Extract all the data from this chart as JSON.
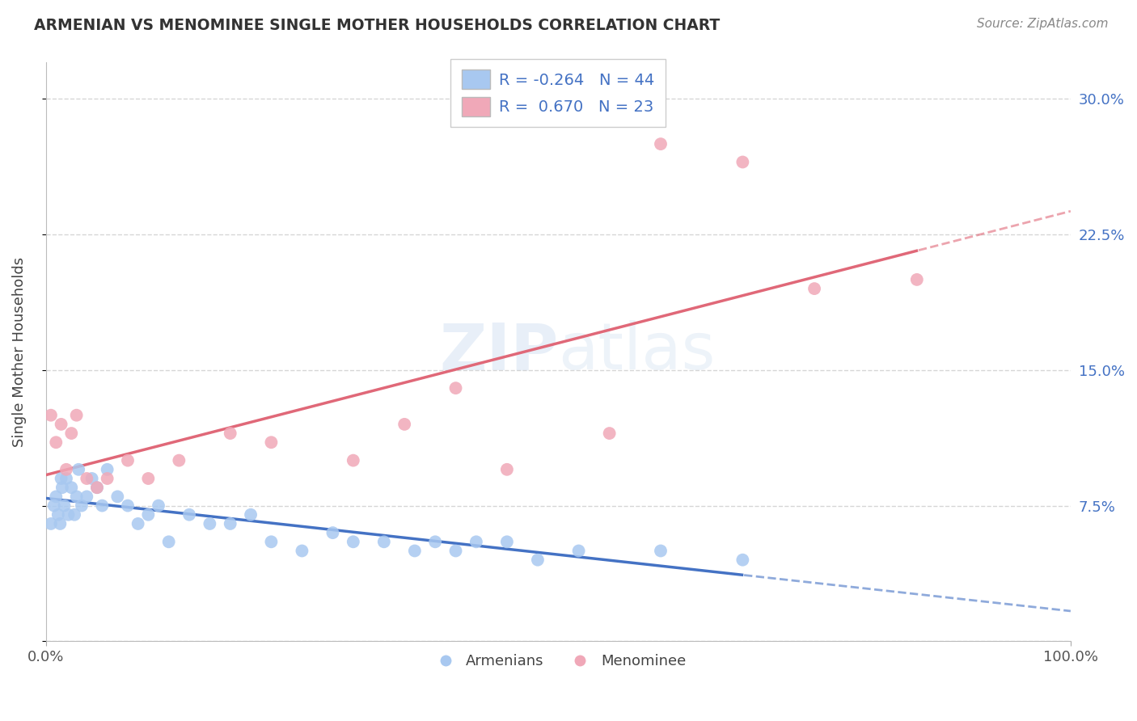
{
  "title": "ARMENIAN VS MENOMINEE SINGLE MOTHER HOUSEHOLDS CORRELATION CHART",
  "source": "Source: ZipAtlas.com",
  "ylabel": "Single Mother Households",
  "xlim": [
    0,
    100
  ],
  "ylim": [
    0,
    32
  ],
  "yticks": [
    0,
    7.5,
    15.0,
    22.5,
    30.0
  ],
  "ytick_labels": [
    "",
    "7.5%",
    "15.0%",
    "22.5%",
    "30.0%"
  ],
  "armenian_color": "#a8c8f0",
  "menominee_color": "#f0a8b8",
  "armenian_line_color": "#4472c4",
  "menominee_line_color": "#e06878",
  "background_color": "#ffffff",
  "grid_color": "#cccccc",
  "armenian_x": [
    0.5,
    0.8,
    1.0,
    1.2,
    1.4,
    1.5,
    1.6,
    1.8,
    2.0,
    2.2,
    2.5,
    2.8,
    3.0,
    3.2,
    3.5,
    4.0,
    4.5,
    5.0,
    5.5,
    6.0,
    7.0,
    8.0,
    9.0,
    10.0,
    11.0,
    12.0,
    14.0,
    16.0,
    18.0,
    20.0,
    22.0,
    25.0,
    28.0,
    30.0,
    33.0,
    36.0,
    38.0,
    40.0,
    42.0,
    45.0,
    48.0,
    52.0,
    60.0,
    68.0
  ],
  "armenian_y": [
    6.5,
    7.5,
    8.0,
    7.0,
    6.5,
    9.0,
    8.5,
    7.5,
    9.0,
    7.0,
    8.5,
    7.0,
    8.0,
    9.5,
    7.5,
    8.0,
    9.0,
    8.5,
    7.5,
    9.5,
    8.0,
    7.5,
    6.5,
    7.0,
    7.5,
    5.5,
    7.0,
    6.5,
    6.5,
    7.0,
    5.5,
    5.0,
    6.0,
    5.5,
    5.5,
    5.0,
    5.5,
    5.0,
    5.5,
    5.5,
    4.5,
    5.0,
    5.0,
    4.5
  ],
  "menominee_x": [
    0.5,
    1.0,
    1.5,
    2.0,
    2.5,
    3.0,
    4.0,
    5.0,
    6.0,
    8.0,
    10.0,
    13.0,
    18.0,
    22.0,
    30.0,
    35.0,
    40.0,
    45.0,
    55.0,
    60.0,
    68.0,
    75.0,
    85.0
  ],
  "menominee_y": [
    12.5,
    11.0,
    12.0,
    9.5,
    11.5,
    12.5,
    9.0,
    8.5,
    9.0,
    10.0,
    9.0,
    10.0,
    11.5,
    11.0,
    10.0,
    12.0,
    14.0,
    9.5,
    11.5,
    27.5,
    26.5,
    19.5,
    20.0
  ],
  "legend_armenian_R": "-0.264",
  "legend_armenian_N": "44",
  "legend_menominee_R": "0.670",
  "legend_menominee_N": "23"
}
